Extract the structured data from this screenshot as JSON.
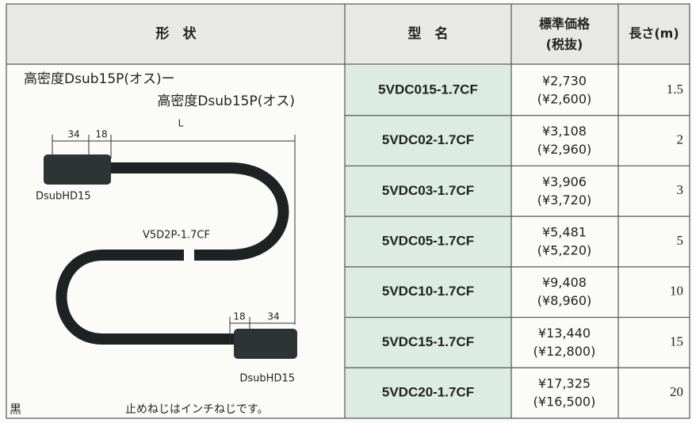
{
  "header": {
    "shape": "形　状",
    "model": "型　名",
    "price": "標準価格",
    "price_note": "(税抜)",
    "length": "長さ(m)"
  },
  "figure": {
    "line1": "高密度Dsub15P(オス)ー",
    "line2": "高密度Dsub15P(オス)",
    "dim_a": "34",
    "dim_b": "18",
    "dim_l": "L",
    "left_connector": "DsubHD15",
    "cable": "V5D2P-1.7CF",
    "dim_c": "18",
    "dim_d": "34",
    "right_connector": "DsubHD15",
    "color": "黒",
    "note": "止めねじはインチねじです。"
  },
  "table": {
    "rows": [
      [
        "5VDC015-1.7CF",
        "¥2,730",
        "(¥2,600)",
        "1.5"
      ],
      [
        "5VDC02-1.7CF",
        "¥3,108",
        "(¥2,960)",
        "2"
      ],
      [
        "5VDC03-1.7CF",
        "¥3,906",
        "(¥3,720)",
        "3"
      ],
      [
        "5VDC05-1.7CF",
        "¥5,481",
        "(¥5,220)",
        "5"
      ],
      [
        "5VDC10-1.7CF",
        "¥9,408",
        "(¥8,960)",
        "10"
      ],
      [
        "5VDC15-1.7CF",
        "¥13,440",
        "(¥12,800)",
        "15"
      ],
      [
        "5VDC20-1.7CF",
        "¥17,325",
        "(¥16,500)",
        "20"
      ]
    ]
  }
}
